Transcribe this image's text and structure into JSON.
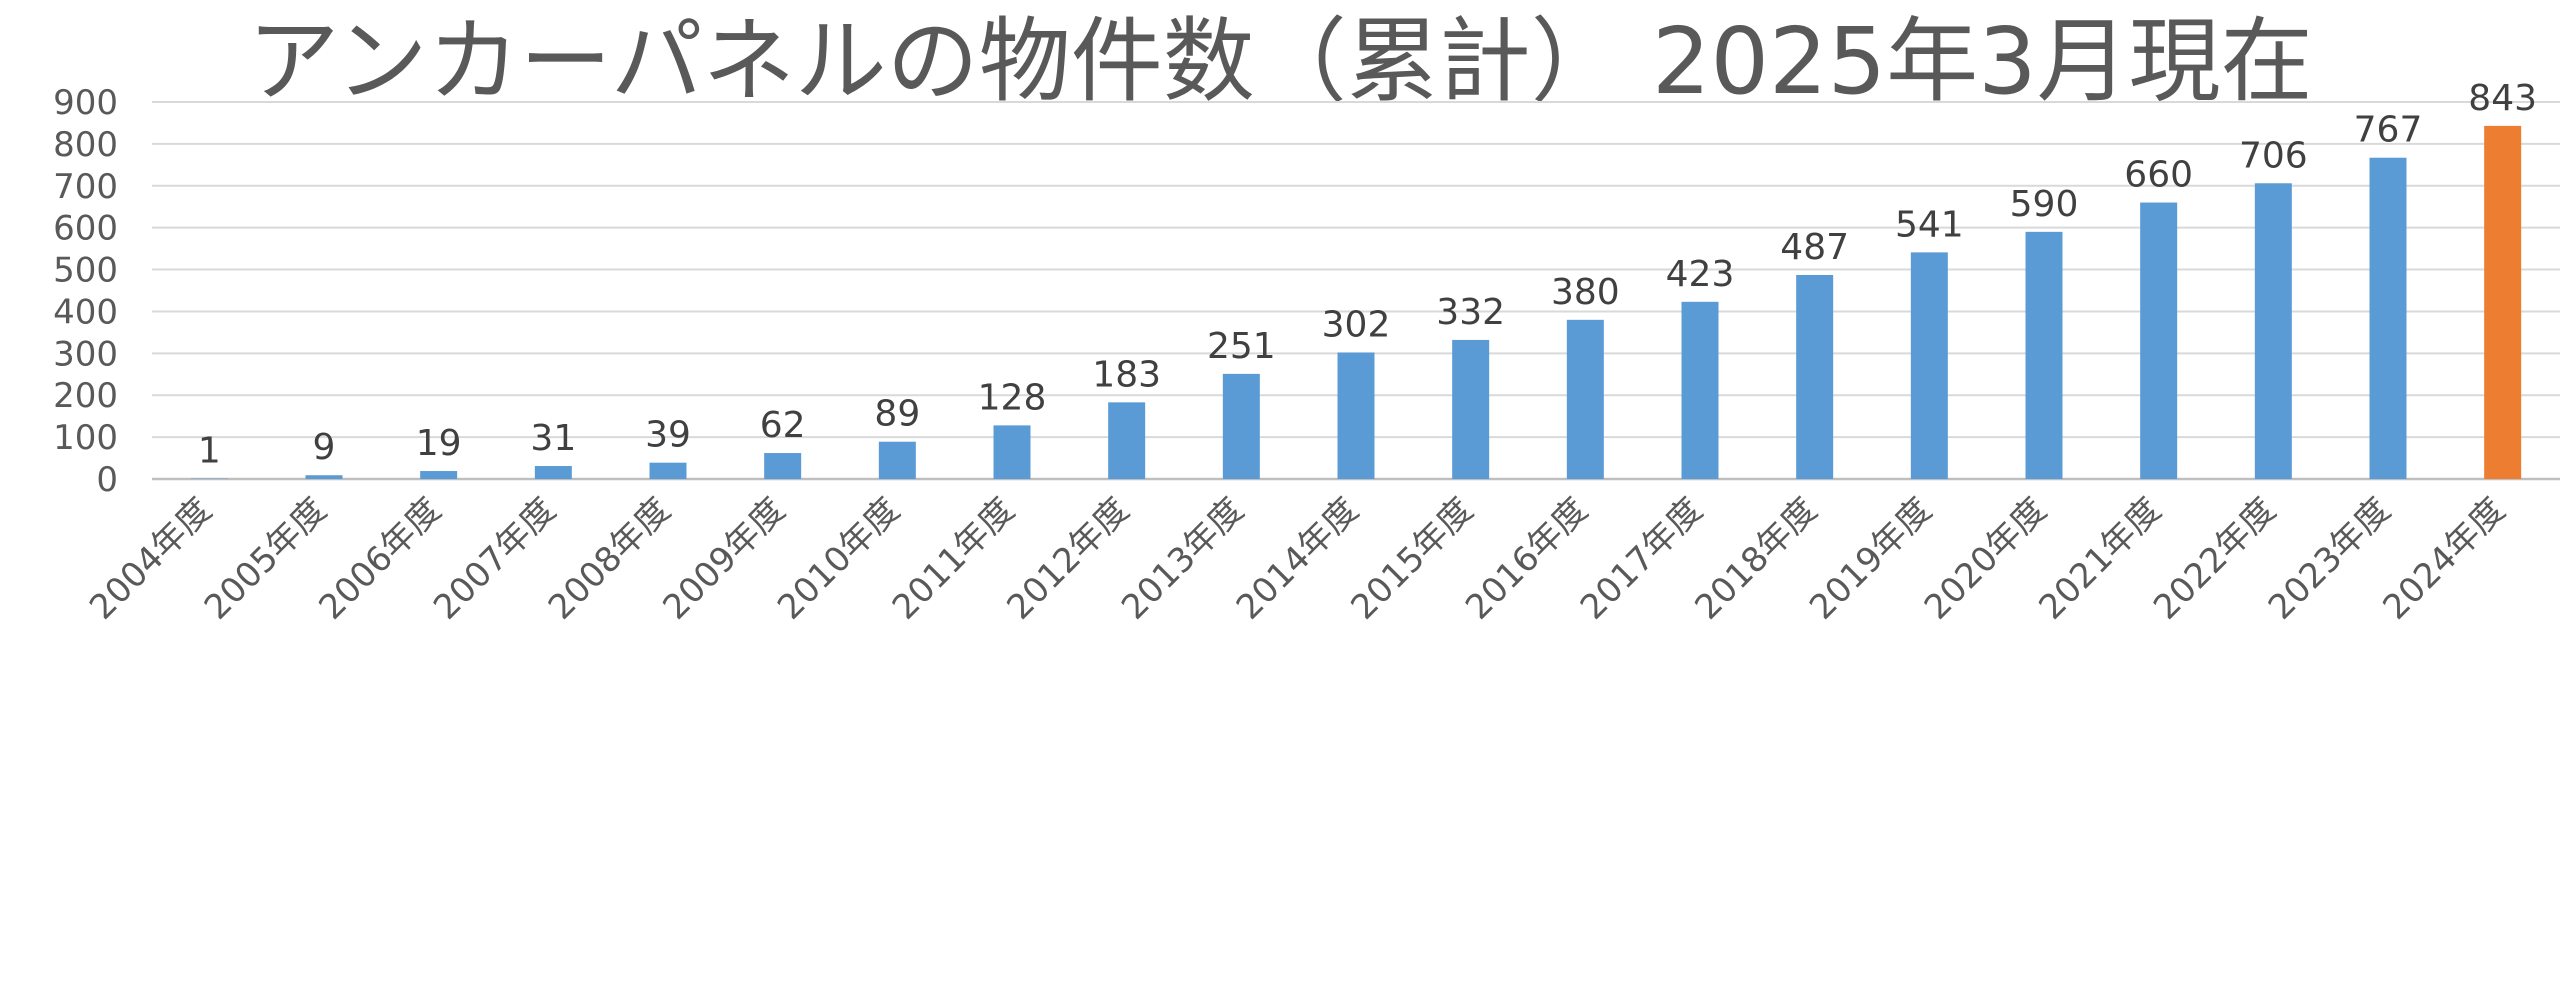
{
  "chart_data": {
    "type": "bar",
    "title": "アンカーパネルの物件数（累計） 2025年3月現在",
    "xlabel": "",
    "ylabel": "",
    "ylim": [
      0,
      900
    ],
    "y_ticks": [
      "0",
      "100",
      "200",
      "300",
      "400",
      "500",
      "600",
      "700",
      "800",
      "900"
    ],
    "grid": true,
    "legend": "none",
    "categories": [
      "2004年度",
      "2005年度",
      "2006年度",
      "2007年度",
      "2008年度",
      "2009年度",
      "2010年度",
      "2011年度",
      "2012年度",
      "2013年度",
      "2014年度",
      "2015年度",
      "2016年度",
      "2017年度",
      "2018年度",
      "2019年度",
      "2020年度",
      "2021年度",
      "2022年度",
      "2023年度",
      "2024年度"
    ],
    "values": [
      1,
      9,
      19,
      31,
      39,
      62,
      89,
      128,
      183,
      251,
      302,
      332,
      380,
      423,
      487,
      541,
      590,
      660,
      706,
      767,
      843
    ],
    "data_labels": [
      "1",
      "9",
      "19",
      "31",
      "39",
      "62",
      "89",
      "128",
      "183",
      "251",
      "302",
      "332",
      "380",
      "423",
      "487",
      "541",
      "590",
      "660",
      "706",
      "767",
      "843"
    ],
    "colors": {
      "bar": "#5b9bd5",
      "highlight_bar": "#ed7d31",
      "grid": "#d9d9d9",
      "text": "#595959",
      "label": "#404040"
    },
    "highlight_category": "2024年度"
  }
}
